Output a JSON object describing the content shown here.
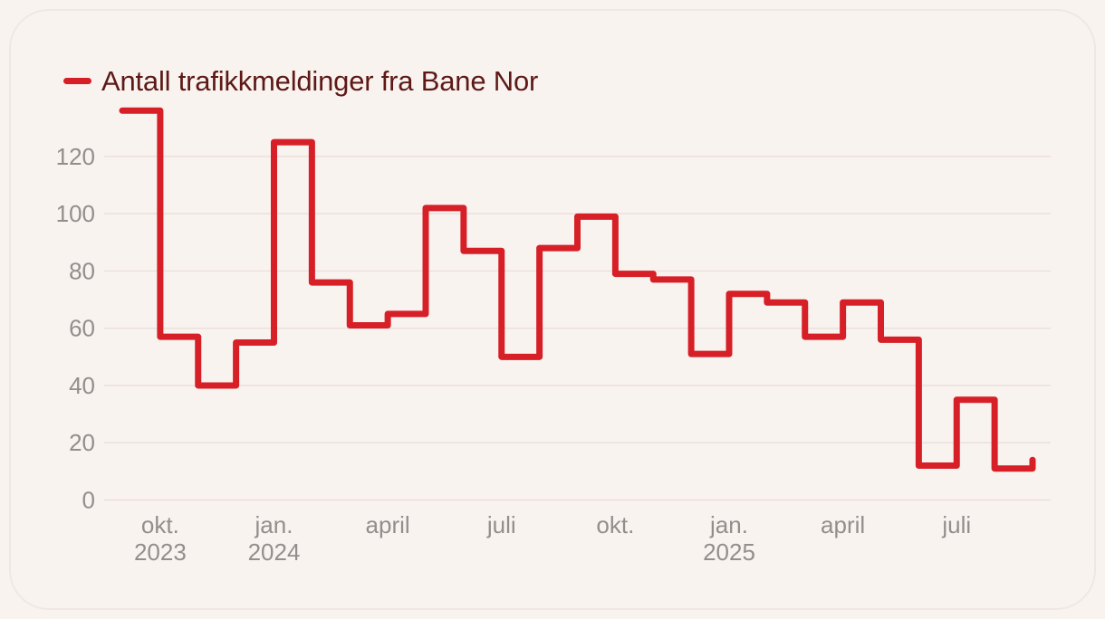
{
  "page": {
    "background": "#f9f3ef",
    "card_border": "#f0e7e3"
  },
  "legend": {
    "label": "Antall trafikkmeldinger fra Bane Nor",
    "swatch_color": "#d61f26",
    "text_color": "#5e1916"
  },
  "chart_data": {
    "type": "line",
    "line_style": "step-after",
    "title": "Antall trafikkmeldinger fra Bane Nor",
    "series": [
      {
        "name": "Antall trafikkmeldinger fra Bane Nor",
        "color": "#d61f26",
        "x": [
          "2023-09",
          "2023-10",
          "2023-11",
          "2023-12",
          "2024-01",
          "2024-02",
          "2024-03",
          "2024-04",
          "2024-05",
          "2024-06",
          "2024-07",
          "2024-08",
          "2024-09",
          "2024-10",
          "2024-11",
          "2024-12",
          "2025-01",
          "2025-02",
          "2025-03",
          "2025-04",
          "2025-05",
          "2025-06",
          "2025-07",
          "2025-08",
          "2025-09"
        ],
        "values": [
          136,
          57,
          40,
          55,
          125,
          76,
          61,
          65,
          102,
          87,
          50,
          88,
          99,
          79,
          77,
          51,
          72,
          69,
          57,
          69,
          56,
          12,
          35,
          11,
          14
        ]
      }
    ],
    "ylim": [
      0,
      140
    ],
    "yticks": [
      0,
      20,
      40,
      60,
      80,
      100,
      120
    ],
    "xticks": [
      {
        "index": 1,
        "label": "okt.",
        "year": "2023"
      },
      {
        "index": 4,
        "label": "jan.",
        "year": "2024"
      },
      {
        "index": 7,
        "label": "april",
        "year": ""
      },
      {
        "index": 10,
        "label": "juli",
        "year": ""
      },
      {
        "index": 13,
        "label": "okt.",
        "year": ""
      },
      {
        "index": 16,
        "label": "jan.",
        "year": "2025"
      },
      {
        "index": 19,
        "label": "april",
        "year": ""
      },
      {
        "index": 22,
        "label": "juli",
        "year": ""
      }
    ],
    "grid": true,
    "grid_color": "#ecdfdc",
    "axis_text_color": "#918e8c",
    "legend_position": "top-left"
  }
}
